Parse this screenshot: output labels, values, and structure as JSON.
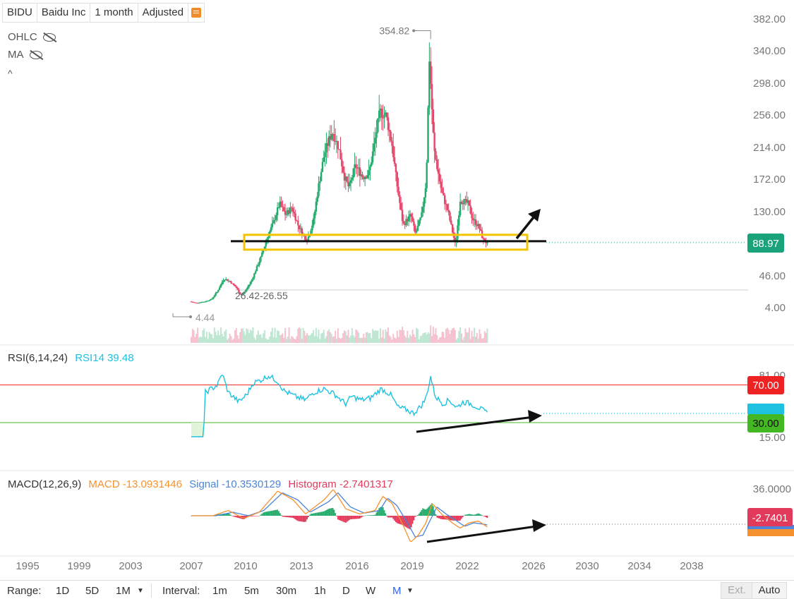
{
  "header": {
    "ticker": "BIDU",
    "company": "Baidu Inc",
    "period": "1 month",
    "mode": "Adjusted",
    "icon": "bookmark-icon"
  },
  "legend": {
    "ohlc": "OHLC",
    "ma": "MA",
    "collapse": "^"
  },
  "price_axis": [
    "382.00",
    "340.00",
    "298.00",
    "256.00",
    "214.00",
    "172.00",
    "130.00",
    "88.97",
    "46.00",
    "4.00"
  ],
  "price_tag": {
    "value": "88.97",
    "color": "#1aa37a"
  },
  "annotations": {
    "high": "354.82",
    "low": "4.44",
    "range": "26.42-26.55"
  },
  "rsi": {
    "title": "RSI(6,14,24)",
    "value_label": "RSI14 39.48",
    "axis": [
      "81.00",
      "15.00"
    ],
    "level_high": "70.00",
    "level_low": "30.00",
    "colors": {
      "line": "#1ec2e0",
      "high": "#ee2222",
      "low": "#44b822"
    }
  },
  "macd": {
    "title": "MACD(12,26,9)",
    "macd_label": "MACD -13.0931446",
    "signal_label": "Signal -10.3530129",
    "hist_label": "Histogram -2.7401317",
    "axis": [
      "36.0000"
    ],
    "tag": "-2.7401",
    "colors": {
      "macd": "#f5922f",
      "signal": "#4b84d8",
      "hist_pos": "#22ab6a",
      "hist_neg": "#e23a5a"
    }
  },
  "x_axis": [
    "1995",
    "1999",
    "2003",
    "2007",
    "2010",
    "2013",
    "2016",
    "2019",
    "2022",
    "2026",
    "2030",
    "2034",
    "2038"
  ],
  "toolbar": {
    "range_label": "Range:",
    "ranges": [
      "1D",
      "5D",
      "1M"
    ],
    "interval_label": "Interval:",
    "intervals": [
      "1m",
      "5m",
      "30m",
      "1h",
      "D",
      "W",
      "M"
    ],
    "ext": "Ext.",
    "auto": "Auto"
  },
  "chart_data": {
    "type": "candlestick",
    "x_start": 2005.6,
    "x_step_months": 1,
    "price_points": [
      [
        2005.6,
        12
      ],
      [
        2006.0,
        10
      ],
      [
        2006.6,
        12
      ],
      [
        2007.0,
        15
      ],
      [
        2007.4,
        26
      ],
      [
        2007.8,
        42
      ],
      [
        2008.2,
        38
      ],
      [
        2008.6,
        30
      ],
      [
        2008.9,
        20
      ],
      [
        2009.2,
        26
      ],
      [
        2009.6,
        40
      ],
      [
        2009.9,
        55
      ],
      [
        2010.2,
        70
      ],
      [
        2010.6,
        95
      ],
      [
        2011.0,
        115
      ],
      [
        2011.4,
        140
      ],
      [
        2011.8,
        125
      ],
      [
        2012.2,
        135
      ],
      [
        2012.6,
        112
      ],
      [
        2012.9,
        100
      ],
      [
        2013.2,
        92
      ],
      [
        2013.6,
        118
      ],
      [
        2013.9,
        160
      ],
      [
        2014.3,
        205
      ],
      [
        2014.8,
        235
      ],
      [
        2015.2,
        215
      ],
      [
        2015.6,
        175
      ],
      [
        2015.9,
        160
      ],
      [
        2016.3,
        190
      ],
      [
        2016.8,
        175
      ],
      [
        2017.2,
        180
      ],
      [
        2017.6,
        225
      ],
      [
        2017.9,
        260
      ],
      [
        2018.3,
        255
      ],
      [
        2018.7,
        215
      ],
      [
        2019.0,
        165
      ],
      [
        2019.4,
        112
      ],
      [
        2019.9,
        125
      ],
      [
        2020.2,
        100
      ],
      [
        2020.6,
        125
      ],
      [
        2020.9,
        170
      ],
      [
        2021.1,
        330
      ],
      [
        2021.4,
        210
      ],
      [
        2021.9,
        155
      ],
      [
        2022.3,
        130
      ],
      [
        2022.8,
        85
      ],
      [
        2023.1,
        145
      ],
      [
        2023.6,
        140
      ],
      [
        2023.9,
        120
      ],
      [
        2024.3,
        110
      ],
      [
        2024.6,
        92
      ],
      [
        2024.8,
        88.97
      ]
    ],
    "rsi14_points": [
      [
        2005.6,
        15
      ],
      [
        2006.4,
        15
      ],
      [
        2006.5,
        62
      ],
      [
        2007.3,
        70
      ],
      [
        2007.6,
        82
      ],
      [
        2008.0,
        62
      ],
      [
        2008.7,
        52
      ],
      [
        2009.2,
        60
      ],
      [
        2009.6,
        72
      ],
      [
        2010.2,
        76
      ],
      [
        2010.6,
        80
      ],
      [
        2011.2,
        74
      ],
      [
        2011.6,
        64
      ],
      [
        2012.3,
        58
      ],
      [
        2013.0,
        54
      ],
      [
        2013.5,
        62
      ],
      [
        2014.2,
        66
      ],
      [
        2014.9,
        60
      ],
      [
        2015.6,
        50
      ],
      [
        2016.0,
        58
      ],
      [
        2016.6,
        54
      ],
      [
        2017.2,
        56
      ],
      [
        2017.9,
        66
      ],
      [
        2018.5,
        60
      ],
      [
        2019.0,
        46
      ],
      [
        2019.5,
        44
      ],
      [
        2020.0,
        40
      ],
      [
        2020.5,
        48
      ],
      [
        2020.8,
        56
      ],
      [
        2021.1,
        79
      ],
      [
        2021.4,
        58
      ],
      [
        2021.9,
        50
      ],
      [
        2022.3,
        54
      ],
      [
        2022.8,
        46
      ],
      [
        2023.2,
        52
      ],
      [
        2023.7,
        50
      ],
      [
        2024.2,
        46
      ],
      [
        2024.8,
        39.48
      ]
    ],
    "macd_points": [
      [
        2005.6,
        0
      ],
      [
        2007.0,
        0
      ],
      [
        2008.0,
        6
      ],
      [
        2009.0,
        -3
      ],
      [
        2010.0,
        4
      ],
      [
        2011.2,
        28
      ],
      [
        2012.2,
        18
      ],
      [
        2013.0,
        2
      ],
      [
        2014.2,
        18
      ],
      [
        2014.8,
        30
      ],
      [
        2015.6,
        8
      ],
      [
        2016.5,
        2
      ],
      [
        2017.5,
        6
      ],
      [
        2018.0,
        22
      ],
      [
        2018.6,
        14
      ],
      [
        2019.3,
        -10
      ],
      [
        2019.8,
        -30
      ],
      [
        2020.3,
        -22
      ],
      [
        2020.8,
        -8
      ],
      [
        2021.2,
        14
      ],
      [
        2021.8,
        2
      ],
      [
        2022.5,
        -8
      ],
      [
        2023.0,
        -14
      ],
      [
        2023.6,
        -8
      ],
      [
        2024.2,
        -6
      ],
      [
        2024.8,
        -13.09
      ]
    ],
    "signal_points": [
      [
        2005.6,
        0
      ],
      [
        2007.2,
        0
      ],
      [
        2008.3,
        4
      ],
      [
        2009.3,
        0
      ],
      [
        2010.3,
        6
      ],
      [
        2011.5,
        26
      ],
      [
        2012.5,
        18
      ],
      [
        2013.3,
        4
      ],
      [
        2014.5,
        16
      ],
      [
        2015.1,
        26
      ],
      [
        2015.9,
        10
      ],
      [
        2016.8,
        3
      ],
      [
        2017.8,
        6
      ],
      [
        2018.3,
        20
      ],
      [
        2018.9,
        12
      ],
      [
        2019.6,
        -8
      ],
      [
        2020.1,
        -24
      ],
      [
        2020.6,
        -22
      ],
      [
        2021.1,
        -4
      ],
      [
        2021.5,
        10
      ],
      [
        2022.1,
        2
      ],
      [
        2022.8,
        -6
      ],
      [
        2023.3,
        -12
      ],
      [
        2023.9,
        -8
      ],
      [
        2024.8,
        -10.35
      ]
    ],
    "hist_value": -2.74,
    "lines": {
      "support": 88.97
    }
  }
}
